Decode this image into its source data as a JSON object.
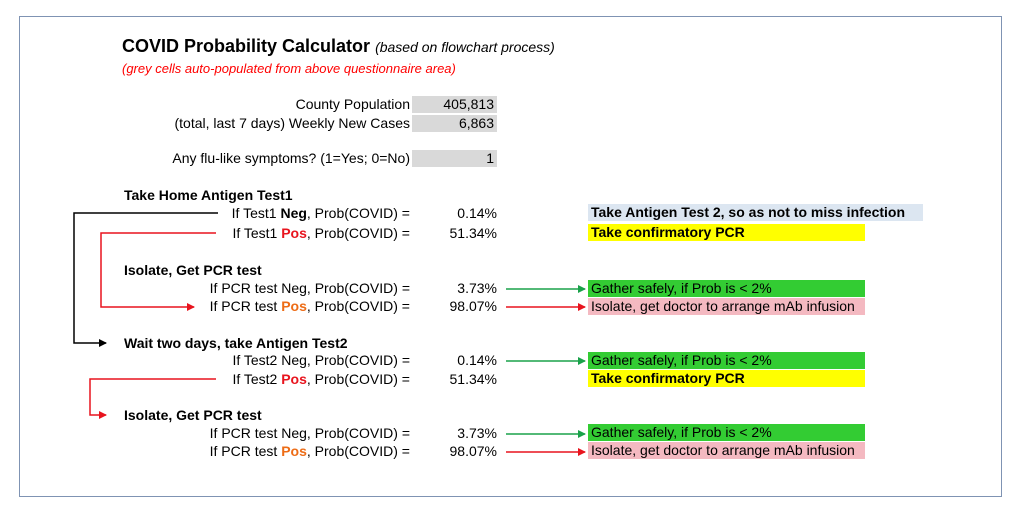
{
  "title": "COVID Probability Calculator",
  "subtitle": "(based on flowchart process)",
  "note": "(grey cells auto-populated from above questionnaire area)",
  "inputs": {
    "county_population_label": "County Population",
    "county_population_value": "405,813",
    "weekly_cases_label": "(total, last 7 days) Weekly New Cases",
    "weekly_cases_value": "6,863",
    "symptoms_label": "Any flu-like symptoms? (1=Yes; 0=No)",
    "symptoms_value": "1"
  },
  "sections": {
    "antigen1_header": "Take Home  Antigen Test1",
    "test1_neg_pre": "If Test1 ",
    "test1_neg_word": "Neg",
    "test1_neg_post": ", Prob(COVID) =",
    "test1_neg_value": "0.14%",
    "test1_neg_action": "Take Antigen Test 2, so as not to miss infection",
    "test1_pos_pre": "If Test1 ",
    "test1_pos_word": "Pos",
    "test1_pos_post": ", Prob(COVID) =",
    "test1_pos_value": "51.34%",
    "test1_pos_action": "Take confirmatory PCR",
    "pcr1_header": "Isolate, Get PCR test",
    "pcr1_neg_label": "If PCR test Neg, Prob(COVID) =",
    "pcr1_neg_value": "3.73%",
    "pcr1_neg_action": "Gather safely, if Prob is < 2%",
    "pcr1_pos_pre": "If PCR test ",
    "pcr1_pos_word": "Pos",
    "pcr1_pos_post": ", Prob(COVID) =",
    "pcr1_pos_value": "98.07%",
    "pcr1_pos_action": "Isolate, get doctor to arrange mAb infusion",
    "antigen2_header": "Wait two days, take Antigen Test2",
    "test2_neg_label": "If Test2 Neg, Prob(COVID) =",
    "test2_neg_value": "0.14%",
    "test2_neg_action": "Gather safely, if Prob is < 2%",
    "test2_pos_pre": "If Test2 ",
    "test2_pos_word": "Pos",
    "test2_pos_post": ", Prob(COVID) =",
    "test2_pos_value": "51.34%",
    "test2_pos_action": "Take confirmatory PCR",
    "pcr2_header": "Isolate, Get PCR test",
    "pcr2_neg_label": "If PCR test Neg, Prob(COVID) =",
    "pcr2_neg_value": "3.73%",
    "pcr2_neg_action": "Gather safely, if Prob is < 2%",
    "pcr2_pos_pre": "If PCR test ",
    "pcr2_pos_word": "Pos",
    "pcr2_pos_post": ", Prob(COVID) =",
    "pcr2_pos_value": "98.07%",
    "pcr2_pos_action": "Isolate, get doctor to arrange mAb infusion"
  },
  "colors": {
    "title_note": "#ff0000",
    "grey_cell": "#d9d9d9",
    "blue_cell": "#dce6f1",
    "yellow_cell": "#ffff00",
    "green_cell": "#33cc33",
    "pink_cell": "#f4b9c1",
    "arrow_green": "#1aa24a",
    "arrow_red": "#e8141e",
    "arrow_black": "#000000"
  }
}
